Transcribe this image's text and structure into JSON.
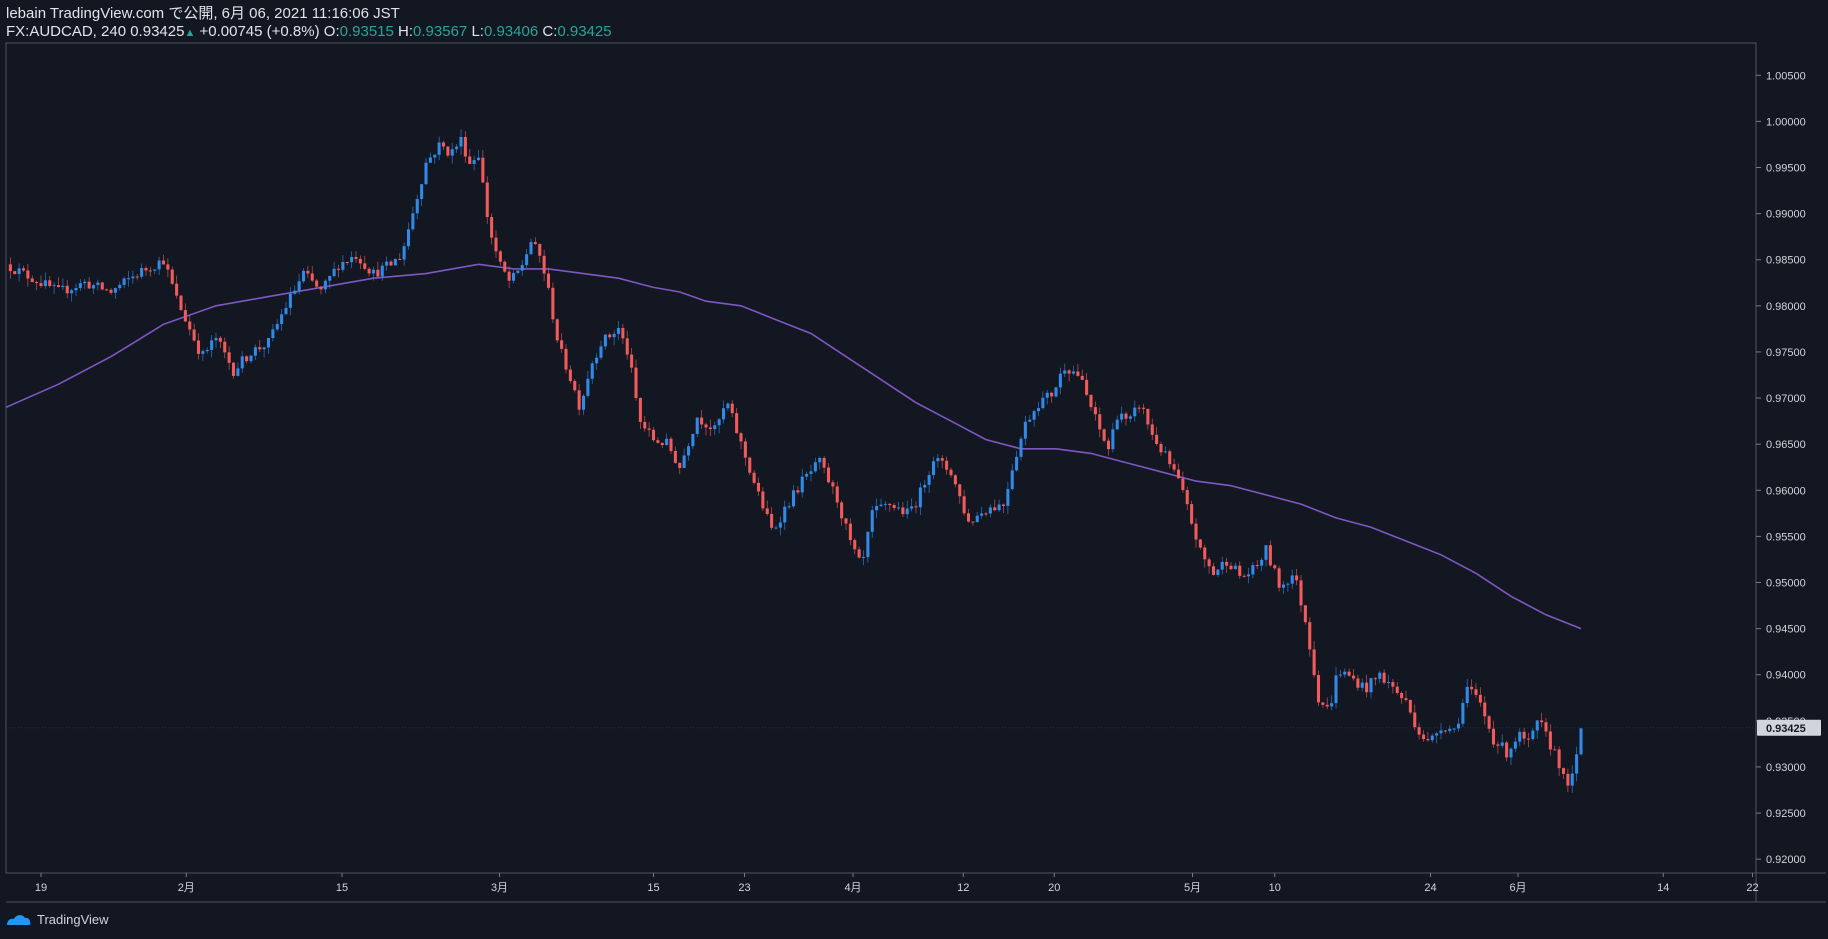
{
  "header": {
    "line1": "lebain TradingView.com で公開, 6月 06, 2021 11:16:06 JST",
    "symbol": "FX:AUDCAD, 240",
    "last": "0.93425",
    "change": "+0.00745 (+0.8%)",
    "o_label": "O:",
    "o_value": "0.93515",
    "h_label": "H:",
    "h_value": "0.93567",
    "l_label": "L:",
    "l_value": "0.93406",
    "c_label": "C:",
    "c_value": "0.93425"
  },
  "footer": {
    "brand": "TradingView"
  },
  "colors": {
    "bg": "#131722",
    "up": "#2f8ae8",
    "down": "#f25b5b",
    "ma": "#7e57c2",
    "text": "#d1d4dc",
    "grid": "#363a45"
  },
  "chart_data": {
    "type": "line",
    "title": "FX:AUDCAD, 240",
    "ylim": [
      0.9185,
      1.0085
    ],
    "yticks": [
      0.92,
      0.925,
      0.93,
      0.935,
      0.94,
      0.945,
      0.95,
      0.955,
      0.96,
      0.965,
      0.97,
      0.975,
      0.98,
      0.985,
      0.99,
      0.995,
      1.0,
      1.005
    ],
    "yticklabels": [
      "0.92000",
      "0.92500",
      "0.93000",
      "0.93500",
      "0.94000",
      "0.94500",
      "0.95000",
      "0.95500",
      "0.96000",
      "0.96500",
      "0.97000",
      "0.97500",
      "0.98000",
      "0.98500",
      "0.99000",
      "0.99500",
      "1.00000",
      "1.00500"
    ],
    "last_price": 0.93425,
    "last_price_label": "0.93425",
    "x_domain": [
      0,
      100
    ],
    "xticks": [
      {
        "x": 2.0,
        "label": "19"
      },
      {
        "x": 10.3,
        "label": "2月"
      },
      {
        "x": 19.2,
        "label": "15"
      },
      {
        "x": 28.2,
        "label": "3月"
      },
      {
        "x": 37.0,
        "label": "15"
      },
      {
        "x": 42.2,
        "label": "23"
      },
      {
        "x": 48.4,
        "label": "4月"
      },
      {
        "x": 54.7,
        "label": "12"
      },
      {
        "x": 59.9,
        "label": "20"
      },
      {
        "x": 67.8,
        "label": "5月"
      },
      {
        "x": 72.5,
        "label": "10"
      },
      {
        "x": 81.4,
        "label": "24"
      },
      {
        "x": 86.4,
        "label": "6月"
      },
      {
        "x": 94.7,
        "label": "14"
      },
      {
        "x": 99.8,
        "label": "22"
      }
    ],
    "price_series": {
      "name": "AUDCAD",
      "x": [
        0,
        1.5,
        3,
        4.5,
        6,
        7.5,
        9,
        9.8,
        10.5,
        11.2,
        12,
        13,
        14,
        15,
        16,
        17,
        18,
        19,
        20,
        21,
        22,
        22.6,
        23.3,
        24,
        24.8,
        25.4,
        26,
        26.5,
        27,
        27.6,
        28.2,
        28.8,
        29.4,
        30,
        30.6,
        31,
        31.6,
        32.2,
        32.8,
        33.4,
        34,
        35,
        35.6,
        36.2,
        37,
        37.8,
        38.5,
        39.5,
        40.5,
        41.2,
        42,
        43,
        43.8,
        44.5,
        45.5,
        46.5,
        47.5,
        48.3,
        48.9,
        49.5,
        50.5,
        51.5,
        52.1,
        53,
        54,
        55,
        56,
        57,
        57.5,
        58.3,
        59,
        59.8,
        60.5,
        61.3,
        62,
        62.6,
        63,
        63.6,
        64.1,
        64.8,
        65.5,
        66.3,
        67,
        67.6,
        68.3,
        69,
        69.8,
        70.6,
        71.4,
        72,
        72.8,
        73.6,
        74.3,
        75,
        75.6,
        76.1,
        77,
        77.7,
        78.5,
        79.3,
        80,
        80.7,
        81.3,
        82,
        82.8,
        83.5,
        84.2,
        85,
        85.8,
        86.4,
        87,
        87.6,
        88.2,
        88.6,
        89.1,
        89.6,
        90
      ],
      "values": [
        0.9845,
        0.983,
        0.9815,
        0.9825,
        0.9815,
        0.9835,
        0.985,
        0.9805,
        0.9775,
        0.9745,
        0.9765,
        0.973,
        0.975,
        0.976,
        0.98,
        0.9835,
        0.9815,
        0.9845,
        0.9855,
        0.9835,
        0.9845,
        0.9855,
        0.9905,
        0.9955,
        0.9975,
        0.9965,
        0.998,
        0.9955,
        0.9965,
        0.9885,
        0.9845,
        0.9825,
        0.984,
        0.987,
        0.985,
        0.9815,
        0.9755,
        0.9725,
        0.969,
        0.9735,
        0.976,
        0.9775,
        0.9745,
        0.9675,
        0.9655,
        0.965,
        0.9625,
        0.968,
        0.9665,
        0.9695,
        0.965,
        0.9595,
        0.9555,
        0.958,
        0.961,
        0.963,
        0.959,
        0.954,
        0.9515,
        0.9575,
        0.9585,
        0.9575,
        0.959,
        0.9635,
        0.962,
        0.9565,
        0.958,
        0.9585,
        0.9625,
        0.9675,
        0.9695,
        0.9705,
        0.9735,
        0.9725,
        0.969,
        0.966,
        0.9645,
        0.969,
        0.967,
        0.9695,
        0.966,
        0.9635,
        0.961,
        0.9575,
        0.953,
        0.951,
        0.9525,
        0.9505,
        0.9515,
        0.9535,
        0.9495,
        0.951,
        0.9455,
        0.9375,
        0.936,
        0.9405,
        0.9395,
        0.9385,
        0.94,
        0.9385,
        0.937,
        0.934,
        0.9325,
        0.9345,
        0.934,
        0.9385,
        0.937,
        0.933,
        0.9315,
        0.9335,
        0.9325,
        0.935,
        0.9325,
        0.9315,
        0.928,
        0.929,
        0.9342
      ]
    },
    "ma_series": {
      "name": "MA",
      "x": [
        0,
        3,
        6,
        9,
        12,
        15,
        18,
        21,
        24,
        27,
        29,
        31,
        33,
        35,
        37,
        38.5,
        40,
        42,
        44,
        46,
        48,
        50,
        52,
        54,
        56,
        58,
        60,
        62,
        64,
        66,
        68,
        70,
        72,
        74,
        76,
        78,
        80,
        82,
        84,
        86,
        88,
        90
      ],
      "values": [
        0.969,
        0.9715,
        0.9745,
        0.978,
        0.98,
        0.981,
        0.982,
        0.983,
        0.9835,
        0.9845,
        0.984,
        0.984,
        0.9835,
        0.983,
        0.982,
        0.9815,
        0.9805,
        0.98,
        0.9785,
        0.977,
        0.9745,
        0.972,
        0.9695,
        0.9675,
        0.9655,
        0.9645,
        0.9645,
        0.964,
        0.963,
        0.962,
        0.961,
        0.9605,
        0.9595,
        0.9585,
        0.957,
        0.956,
        0.9545,
        0.953,
        0.951,
        0.9485,
        0.9465,
        0.945
      ]
    }
  }
}
